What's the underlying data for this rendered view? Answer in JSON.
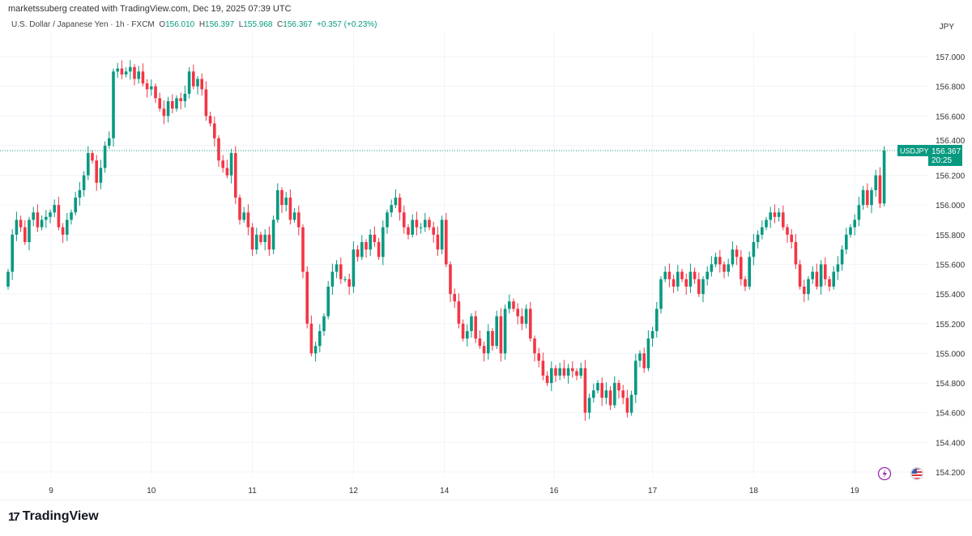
{
  "header": {
    "credit": "marketssuberg created with TradingView.com, Dec 19, 2025 07:39 UTC",
    "symbol_desc": "U.S. Dollar / Japanese Yen · 1h · FXCM",
    "o_label": "O",
    "o": "156.010",
    "h_label": "H",
    "h": "156.397",
    "l_label": "L",
    "l": "155.968",
    "c_label": "C",
    "c": "156.367",
    "change": "+0.357 (+0.23%)",
    "currency": "JPY"
  },
  "price_tag": {
    "symbol": "USDJPY",
    "price": "156.367",
    "countdown": "20:25"
  },
  "footer": {
    "brand": "TradingView"
  },
  "icons": [
    "lightning-icon",
    "us-flag-icon"
  ],
  "colors": {
    "up": "#089981",
    "down": "#f23645",
    "grid": "#f0f3fa"
  },
  "chart_data": {
    "type": "candlestick",
    "title": "U.S. Dollar / Japanese Yen · 1h · FXCM",
    "ylim": [
      154.1,
      157.15
    ],
    "y_ticks": [
      "157.000",
      "156.800",
      "156.600",
      "156.400",
      "156.200",
      "156.000",
      "155.800",
      "155.600",
      "155.400",
      "155.200",
      "155.000",
      "154.800",
      "154.600",
      "154.400",
      "154.200"
    ],
    "x_ticks": [
      {
        "label": "9",
        "index": 10.2
      },
      {
        "label": "10",
        "index": 34
      },
      {
        "label": "11",
        "index": 58
      },
      {
        "label": "12",
        "index": 82
      },
      {
        "label": "14",
        "index": 103.6
      },
      {
        "label": "16",
        "index": 129.6
      },
      {
        "label": "17",
        "index": 153
      },
      {
        "label": "18",
        "index": 177
      },
      {
        "label": "19",
        "index": 201
      }
    ],
    "first_open": 155.45,
    "last_price": 156.367,
    "close": [
      155.55,
      155.8,
      155.9,
      155.85,
      155.75,
      155.9,
      155.95,
      155.85,
      155.9,
      155.92,
      155.95,
      156.0,
      155.85,
      155.8,
      155.9,
      155.95,
      156.05,
      156.1,
      156.2,
      156.35,
      156.3,
      156.15,
      156.25,
      156.4,
      156.45,
      156.9,
      156.92,
      156.88,
      156.9,
      156.93,
      156.85,
      156.9,
      156.82,
      156.78,
      156.8,
      156.72,
      156.65,
      156.6,
      156.7,
      156.65,
      156.72,
      156.7,
      156.75,
      156.9,
      156.8,
      156.85,
      156.78,
      156.6,
      156.55,
      156.45,
      156.3,
      156.25,
      156.2,
      156.35,
      156.05,
      155.9,
      155.95,
      155.85,
      155.7,
      155.8,
      155.75,
      155.8,
      155.7,
      155.9,
      156.1,
      156.0,
      156.05,
      155.9,
      155.95,
      155.85,
      155.55,
      155.2,
      155.0,
      155.05,
      155.15,
      155.25,
      155.45,
      155.55,
      155.6,
      155.5,
      155.5,
      155.45,
      155.7,
      155.65,
      155.75,
      155.7,
      155.8,
      155.75,
      155.65,
      155.85,
      155.95,
      156.0,
      156.05,
      155.95,
      155.85,
      155.8,
      155.9,
      155.85,
      155.85,
      155.9,
      155.85,
      155.8,
      155.7,
      155.9,
      155.6,
      155.4,
      155.35,
      155.2,
      155.1,
      155.15,
      155.25,
      155.1,
      155.05,
      155.0,
      155.15,
      155.05,
      155.25,
      155.0,
      155.3,
      155.35,
      155.3,
      155.25,
      155.2,
      155.3,
      155.1,
      155.0,
      154.95,
      154.85,
      154.8,
      154.9,
      154.85,
      154.9,
      154.85,
      154.9,
      154.88,
      154.85,
      154.9,
      154.6,
      154.7,
      154.75,
      154.8,
      154.7,
      154.75,
      154.65,
      154.8,
      154.75,
      154.7,
      154.6,
      154.72,
      154.95,
      155.0,
      154.9,
      155.1,
      155.15,
      155.3,
      155.5,
      155.55,
      155.5,
      155.45,
      155.55,
      155.5,
      155.45,
      155.55,
      155.5,
      155.4,
      155.5,
      155.55,
      155.6,
      155.65,
      155.6,
      155.55,
      155.6,
      155.7,
      155.65,
      155.5,
      155.45,
      155.65,
      155.75,
      155.8,
      155.85,
      155.9,
      155.95,
      155.92,
      155.95,
      155.85,
      155.8,
      155.75,
      155.6,
      155.45,
      155.4,
      155.5,
      155.55,
      155.45,
      155.6,
      155.5,
      155.45,
      155.55,
      155.6,
      155.7,
      155.8,
      155.85,
      155.9,
      156.0,
      156.1,
      156.0,
      156.1,
      156.2,
      156.01,
      156.367
    ]
  }
}
